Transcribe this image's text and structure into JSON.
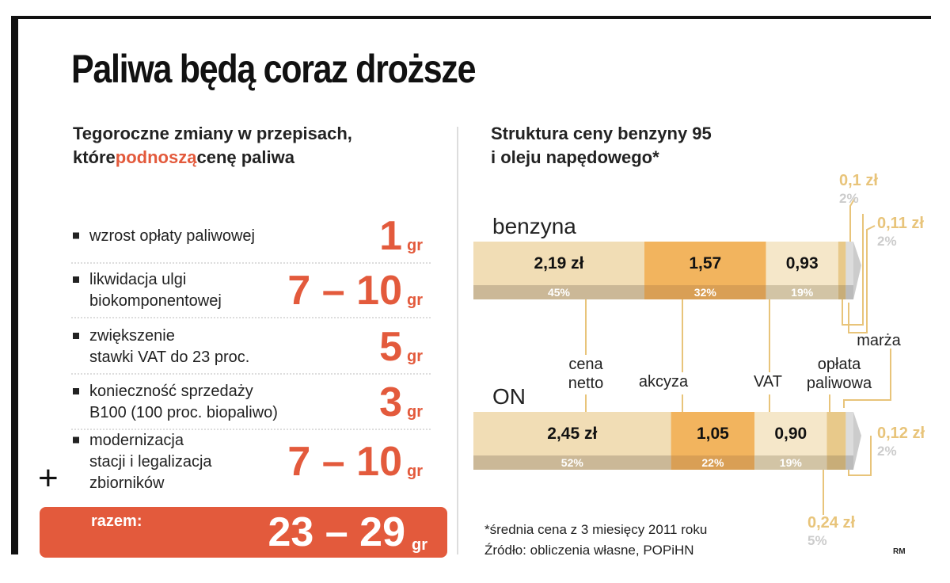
{
  "title": "Paliwa będą coraz droższe",
  "left": {
    "subtitle": {
      "lines": [
        [
          "Tegoroczne zmiany w przepisach,"
        ],
        [
          "które ",
          "podnoszą",
          " cenę paliwa"
        ]
      ]
    },
    "items": [
      {
        "lines": [
          "wzrost opłaty paliwowej"
        ],
        "amount": "1",
        "unit": "gr"
      },
      {
        "lines": [
          "likwidacja ulgi",
          "biokomponentowej"
        ],
        "amount": "7 – 10",
        "unit": "gr"
      },
      {
        "lines": [
          "zwiększenie",
          "stawki VAT do 23 proc."
        ],
        "amount": "5",
        "unit": "gr"
      },
      {
        "lines": [
          "konieczność sprzedaży",
          "B100 (100 proc. biopaliwo)"
        ],
        "amount": "3",
        "unit": "gr"
      },
      {
        "lines": [
          "modernizacja",
          "stacji i legalizacja",
          "zbiorników"
        ],
        "amount": "7 – 10",
        "unit": "gr"
      }
    ],
    "plus": "+",
    "total": {
      "label": "razem:",
      "amount": "23 – 29",
      "unit": "gr"
    }
  },
  "right": {
    "subtitle": {
      "lines": [
        "Struktura ceny benzyny 95",
        "i oleju napędowego*"
      ]
    },
    "components": [
      "cena netto",
      "akcyza",
      "VAT",
      "opłata paliwowa",
      "marża"
    ],
    "bars": [
      {
        "name": "benzyna",
        "segments": [
          {
            "price": "2,19 zł",
            "share": 45,
            "share_label": "45%"
          },
          {
            "price": "1,57",
            "share": 32,
            "share_label": "32%"
          },
          {
            "price": "0,93",
            "share": 19,
            "share_label": "19%"
          },
          {
            "price": "0,1 zł",
            "share": 2,
            "share_label": "2%"
          },
          {
            "price": "0,11 zł",
            "share": 2,
            "share_label": "2%"
          }
        ]
      },
      {
        "name": "ON",
        "segments": [
          {
            "price": "2,45 zł",
            "share": 52,
            "share_label": "52%"
          },
          {
            "price": "1,05",
            "share": 22,
            "share_label": "22%"
          },
          {
            "price": "0,90",
            "share": 19,
            "share_label": "19%"
          },
          {
            "price": "0,24 zł",
            "share": 5,
            "share_label": "5%"
          },
          {
            "price": "0,12 zł",
            "share": 2,
            "share_label": "2%"
          }
        ]
      }
    ],
    "footnotes": [
      "*średnia cena z 3 miesięcy 2011 roku",
      "Źródło: obliczenia własne, POPiHN"
    ],
    "credit": "RM"
  }
}
